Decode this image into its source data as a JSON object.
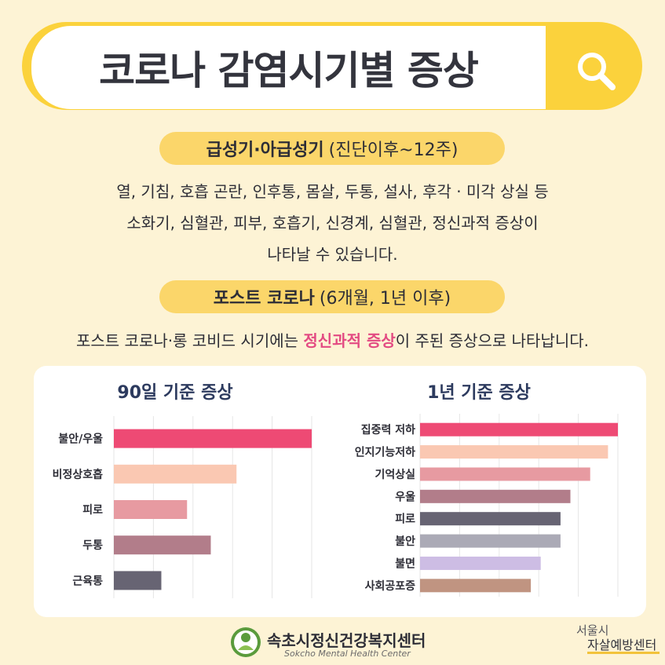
{
  "title": "코로나 감염시기별 증상",
  "section1": {
    "heading": "급성기·아급성기",
    "sub": "(진단이후~12주)",
    "lines": [
      "열, 기침, 호흡 곤란, 인후통, 몸살, 두통, 설사, 후각 · 미각 상실 등",
      "소화기, 심혈관, 피부, 호흡기, 신경계, 심혈관, 정신과적 증상이",
      "나타날 수 있습니다."
    ]
  },
  "section2": {
    "heading": "포스트 코로나",
    "sub": "(6개월, 1년 이후)",
    "text_before": "포스트 코로나·롱 코비드 시기에는 ",
    "text_highlight": "정신과적 증상",
    "text_after": "이 주된 증상으로 나타납니다."
  },
  "chart_data": [
    {
      "type": "bar",
      "orientation": "horizontal",
      "title": "90일 기준 증상",
      "categories": [
        "불안/우울",
        "비정상호흡",
        "피로",
        "두통",
        "근육통"
      ],
      "values": [
        100,
        62,
        37,
        49,
        24
      ],
      "colors": [
        "#ee4a74",
        "#fac8b2",
        "#e79aa1",
        "#b27d8a",
        "#676473"
      ],
      "grid": true
    },
    {
      "type": "bar",
      "orientation": "horizontal",
      "title": "1년 기준 증상",
      "categories": [
        "집중력 저하",
        "인지기능저하",
        "기억상실",
        "우울",
        "피로",
        "불안",
        "불면",
        "사회공포증"
      ],
      "values": [
        100,
        95,
        86,
        76,
        71,
        71,
        61,
        56
      ],
      "colors": [
        "#ee4a74",
        "#fac8b2",
        "#e79aa1",
        "#b27d8a",
        "#676473",
        "#abaab6",
        "#cdbde4",
        "#c09481"
      ],
      "grid": true
    }
  ],
  "footer": {
    "org_name": "속초시정신건강복지센터",
    "org_name_en": "Sokcho Mental Health Center",
    "partner_line1": "서울시",
    "partner_line2": "자살예방센터"
  },
  "colors": {
    "background": "#fdf3d5",
    "accent_yellow": "#fbd23c",
    "highlight_pink": "#e34a82",
    "chart_title_navy": "#2c3a5e"
  },
  "icons": {
    "search": "search-icon",
    "logo": "health-center-logo-icon"
  }
}
